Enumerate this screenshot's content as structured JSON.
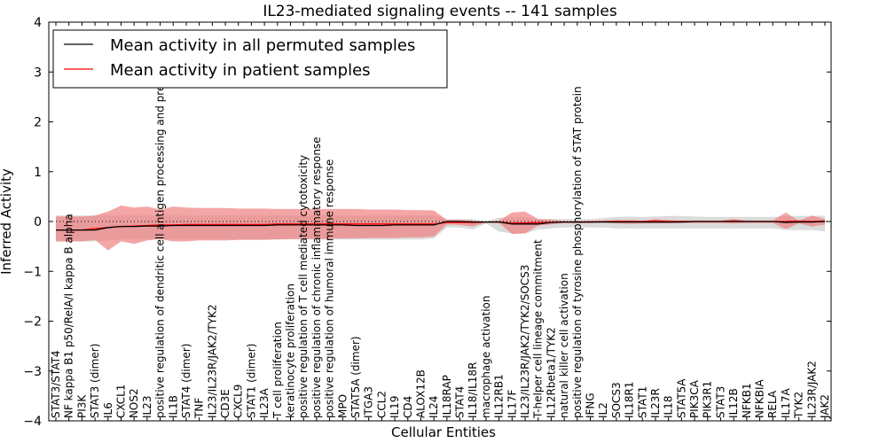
{
  "chart_data": {
    "type": "line",
    "title": "IL23-mediated signaling events -- 141 samples",
    "xlabel": "Cellular Entities",
    "ylabel": "Inferred Activity",
    "ylim": [
      -4,
      4
    ],
    "yticks": [
      -4,
      -3,
      -2,
      -1,
      0,
      1,
      2,
      3,
      4
    ],
    "ytick_labels": [
      "−4",
      "−3",
      "−2",
      "−1",
      "0",
      "1",
      "2",
      "3",
      "4"
    ],
    "grid": false,
    "legend_location": "top-left",
    "categories": [
      "STAT3/STAT4",
      "NF kappa B1 p50/RelA/I kappa B alpha",
      "PI3K",
      "STAT3 (dimer)",
      "IL6",
      "CXCL1",
      "NOS2",
      "IL23",
      "positive regulation of dendritic cell antigen processing and presentation",
      "IL1B",
      "STAT4 (dimer)",
      "TNF",
      "IL23/IL23R/JAK2/TYK2",
      "CD3E",
      "CXCL9",
      "STAT1 (dimer)",
      "IL23A",
      "T cell proliferation",
      "keratinocyte proliferation",
      "positive regulation of T cell mediated cytotoxicity",
      "positive regulation of chronic inflammatory response",
      "positive regulation of humoral immune response",
      "MPO",
      "STAT5A (dimer)",
      "ITGA3",
      "CCL2",
      "IL19",
      "CD4",
      "ALOX12B",
      "IL24",
      "IL18RAP",
      "STAT4",
      "IL18/IL18R",
      "macrophage activation",
      "IL12RB1",
      "IL17F",
      "IL23/IL23R/JAK2/TYK2/SOCS3",
      "T-helper cell lineage commitment",
      "IL12Rbeta1/TYK2",
      "natural killer cell activation",
      "positive regulation of tyrosine phosphorylation of STAT protein",
      "IFNG",
      "IL2",
      "SOCS3",
      "IL18R1",
      "STAT1",
      "IL23R",
      "IL18",
      "STAT5A",
      "PIK3CA",
      "PIK3R1",
      "STAT3",
      "IL12B",
      "NFKB1",
      "NFKBIA",
      "RELA",
      "IL17A",
      "TYK2",
      "IL23R/JAK2",
      "JAK2"
    ],
    "series": [
      {
        "name": "Mean activity in all permuted samples",
        "color": "#000000",
        "values": [
          -0.17,
          -0.17,
          -0.17,
          -0.17,
          -0.12,
          -0.1,
          -0.1,
          -0.09,
          -0.09,
          -0.08,
          -0.08,
          -0.08,
          -0.08,
          -0.08,
          -0.08,
          -0.08,
          -0.08,
          -0.07,
          -0.07,
          -0.07,
          -0.07,
          -0.07,
          -0.07,
          -0.08,
          -0.08,
          -0.08,
          -0.07,
          -0.07,
          -0.07,
          -0.07,
          0.0,
          0.0,
          -0.01,
          -0.01,
          -0.01,
          -0.05,
          -0.05,
          -0.05,
          -0.02,
          -0.01,
          -0.01,
          -0.01,
          -0.01,
          -0.01,
          -0.01,
          -0.01,
          -0.01,
          -0.01,
          -0.01,
          0.0,
          0.0,
          0.0,
          0.0,
          0.0,
          0.0,
          0.0,
          -0.02,
          -0.01,
          -0.01,
          0.0
        ],
        "band": {
          "color": "#c8c8c8",
          "upper": [
            0.12,
            0.12,
            0.12,
            0.12,
            0.12,
            0.12,
            0.12,
            0.12,
            0.12,
            0.12,
            0.12,
            0.12,
            0.12,
            0.12,
            0.12,
            0.12,
            0.12,
            0.12,
            0.12,
            0.12,
            0.12,
            0.12,
            0.12,
            0.12,
            0.12,
            0.12,
            0.12,
            0.12,
            0.12,
            0.12,
            0.05,
            0.05,
            0.05,
            0.0,
            0.08,
            0.08,
            0.08,
            0.05,
            0.05,
            0.05,
            0.05,
            0.05,
            0.07,
            0.09,
            0.1,
            0.09,
            0.1,
            0.11,
            0.11,
            0.1,
            0.09,
            0.09,
            0.09,
            0.09,
            0.09,
            0.09,
            0.11,
            0.11,
            0.11,
            0.12
          ],
          "lower": [
            -0.4,
            -0.4,
            -0.4,
            -0.4,
            -0.38,
            -0.36,
            -0.36,
            -0.36,
            -0.36,
            -0.36,
            -0.36,
            -0.36,
            -0.36,
            -0.36,
            -0.36,
            -0.36,
            -0.36,
            -0.36,
            -0.36,
            -0.36,
            -0.36,
            -0.36,
            -0.36,
            -0.36,
            -0.36,
            -0.36,
            -0.36,
            -0.36,
            -0.36,
            -0.34,
            -0.12,
            -0.12,
            -0.16,
            -0.04,
            -0.2,
            -0.24,
            -0.24,
            -0.16,
            -0.14,
            -0.12,
            -0.12,
            -0.12,
            -0.12,
            -0.14,
            -0.14,
            -0.14,
            -0.14,
            -0.14,
            -0.14,
            -0.14,
            -0.14,
            -0.14,
            -0.14,
            -0.14,
            -0.14,
            -0.14,
            -0.17,
            -0.17,
            -0.17,
            -0.2
          ]
        }
      },
      {
        "name": "Mean activity in patient samples",
        "color": "#ff0000",
        "values": [
          -0.17,
          -0.17,
          -0.17,
          -0.14,
          -0.12,
          -0.1,
          -0.09,
          -0.08,
          -0.07,
          -0.07,
          -0.06,
          -0.06,
          -0.06,
          -0.06,
          -0.06,
          -0.06,
          -0.06,
          -0.05,
          -0.05,
          -0.05,
          -0.05,
          -0.05,
          -0.05,
          -0.05,
          -0.05,
          -0.05,
          -0.05,
          -0.05,
          -0.05,
          -0.05,
          -0.02,
          -0.02,
          -0.02,
          -0.01,
          -0.01,
          -0.03,
          -0.03,
          -0.02,
          -0.02,
          -0.01,
          -0.01,
          -0.01,
          0.0,
          0.0,
          0.0,
          0.0,
          0.01,
          0.0,
          0.0,
          0.0,
          0.0,
          0.0,
          0.01,
          0.0,
          0.0,
          0.0,
          0.0,
          0.01,
          0.0,
          0.01
        ],
        "band": {
          "color": "#f08080",
          "upper": [
            0.1,
            0.1,
            0.1,
            0.12,
            0.2,
            0.32,
            0.28,
            0.3,
            0.24,
            0.3,
            0.28,
            0.27,
            0.27,
            0.27,
            0.26,
            0.26,
            0.26,
            0.25,
            0.25,
            0.25,
            0.25,
            0.25,
            0.25,
            0.25,
            0.24,
            0.24,
            0.24,
            0.23,
            0.23,
            0.22,
            0.03,
            0.03,
            0.02,
            0.0,
            0.02,
            0.18,
            0.2,
            0.05,
            0.04,
            0.01,
            0.01,
            0.02,
            0.01,
            0.03,
            0.03,
            0.02,
            0.05,
            0.03,
            0.02,
            0.02,
            0.02,
            0.02,
            0.05,
            0.02,
            0.02,
            0.02,
            0.18,
            0.01,
            0.12,
            0.05
          ],
          "lower": [
            -0.4,
            -0.4,
            -0.4,
            -0.37,
            -0.58,
            -0.4,
            -0.45,
            -0.38,
            -0.35,
            -0.4,
            -0.4,
            -0.38,
            -0.38,
            -0.38,
            -0.37,
            -0.37,
            -0.37,
            -0.36,
            -0.35,
            -0.35,
            -0.35,
            -0.35,
            -0.34,
            -0.34,
            -0.33,
            -0.33,
            -0.33,
            -0.32,
            -0.32,
            -0.3,
            -0.06,
            -0.07,
            -0.1,
            -0.02,
            -0.03,
            -0.25,
            -0.24,
            -0.08,
            -0.06,
            -0.03,
            -0.03,
            -0.03,
            -0.02,
            -0.04,
            -0.05,
            -0.04,
            -0.04,
            -0.04,
            -0.03,
            -0.03,
            -0.03,
            -0.03,
            -0.04,
            -0.03,
            -0.03,
            -0.03,
            -0.15,
            -0.04,
            -0.1,
            -0.06
          ]
        }
      }
    ],
    "reference_line": {
      "y": 0,
      "style": "dotted",
      "color": "#000000"
    }
  }
}
